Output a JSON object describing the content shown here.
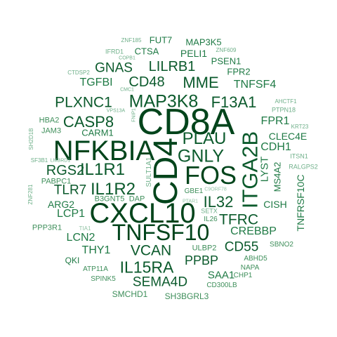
{
  "colors": {
    "background": "#ffffff",
    "darkest": "#00441b",
    "dark": "#0b5a2c",
    "mid": "#1f7a45",
    "medium": "#3f8f5b",
    "light": "#6fb08a",
    "lightest": "#93c4a6"
  },
  "words": [
    {
      "text": "CD8A",
      "tone": "darkest"
    },
    {
      "text": "CD4",
      "tone": "darkest"
    },
    {
      "text": "NFKBIA",
      "tone": "darkest"
    },
    {
      "text": "CXCL10",
      "tone": "darkest"
    },
    {
      "text": "FOS",
      "tone": "darkest"
    },
    {
      "text": "TNFSF10",
      "tone": "darkest"
    },
    {
      "text": "ITGA2B",
      "tone": "dark"
    },
    {
      "text": "MAP3K8",
      "tone": "dark"
    },
    {
      "text": "GNLY",
      "tone": "dark"
    },
    {
      "text": "PLAU",
      "tone": "dark"
    },
    {
      "text": "IL1R1",
      "tone": "dark"
    },
    {
      "text": "IL1R2",
      "tone": "dark"
    },
    {
      "text": "CASP8",
      "tone": "dark"
    },
    {
      "text": "F13A1",
      "tone": "dark"
    },
    {
      "text": "CD48",
      "tone": "dark"
    },
    {
      "text": "MME",
      "tone": "dark"
    },
    {
      "text": "IL15RA",
      "tone": "dark"
    },
    {
      "text": "VCAN",
      "tone": "dark"
    },
    {
      "text": "IL32",
      "tone": "dark"
    },
    {
      "text": "TFRC",
      "tone": "dark"
    },
    {
      "text": "PLXNC1",
      "tone": "dark"
    },
    {
      "text": "LILRB1",
      "tone": "dark"
    },
    {
      "text": "GNAS",
      "tone": "dark"
    },
    {
      "text": "RGS2",
      "tone": "dark"
    },
    {
      "text": "TLR7",
      "tone": "dark"
    },
    {
      "text": "SEMA4D",
      "tone": "dark"
    },
    {
      "text": "CD55",
      "tone": "dark"
    },
    {
      "text": "PPBP",
      "tone": "dark"
    },
    {
      "text": "TNFSF4",
      "tone": "mid"
    },
    {
      "text": "TGFBI",
      "tone": "mid"
    },
    {
      "text": "FPR1",
      "tone": "mid"
    },
    {
      "text": "CDH1",
      "tone": "mid"
    },
    {
      "text": "LYST",
      "tone": "mid"
    },
    {
      "text": "CREBBP",
      "tone": "mid"
    },
    {
      "text": "THY1",
      "tone": "mid"
    },
    {
      "text": "LCN2",
      "tone": "mid"
    },
    {
      "text": "LCP1",
      "tone": "mid"
    },
    {
      "text": "ARG2",
      "tone": "mid"
    },
    {
      "text": "CARM1",
      "tone": "mid"
    },
    {
      "text": "SAA1",
      "tone": "mid"
    },
    {
      "text": "CLEC4E",
      "tone": "mid"
    },
    {
      "text": "MS4A2",
      "tone": "mid"
    },
    {
      "text": "CISH",
      "tone": "mid"
    },
    {
      "text": "TNFRSF10C",
      "tone": "mid"
    },
    {
      "text": "PELI1",
      "tone": "mid"
    },
    {
      "text": "MAP3K5",
      "tone": "mid"
    },
    {
      "text": "PSEN1",
      "tone": "mid"
    },
    {
      "text": "FPR2",
      "tone": "mid"
    },
    {
      "text": "CTSA",
      "tone": "mid"
    },
    {
      "text": "FUT7",
      "tone": "mid"
    },
    {
      "text": "QKI",
      "tone": "mid"
    },
    {
      "text": "ABHD5",
      "tone": "medium"
    },
    {
      "text": "NAPA",
      "tone": "medium"
    },
    {
      "text": "CHP1",
      "tone": "medium"
    },
    {
      "text": "SBNO2",
      "tone": "medium"
    },
    {
      "text": "ULBP2",
      "tone": "medium"
    },
    {
      "text": "CD300LB",
      "tone": "medium"
    },
    {
      "text": "SH3BGRL3",
      "tone": "medium"
    },
    {
      "text": "SMCHD1",
      "tone": "medium"
    },
    {
      "text": "SPINK5",
      "tone": "medium"
    },
    {
      "text": "ATP11A",
      "tone": "medium"
    },
    {
      "text": "B3GNT5",
      "tone": "medium"
    },
    {
      "text": "DAP",
      "tone": "medium"
    },
    {
      "text": "PPP3R1",
      "tone": "medium"
    },
    {
      "text": "PABPC1",
      "tone": "medium"
    },
    {
      "text": "JAM3",
      "tone": "medium"
    },
    {
      "text": "HBA2",
      "tone": "medium"
    },
    {
      "text": "GBE1",
      "tone": "medium"
    },
    {
      "text": "IL26",
      "tone": "medium"
    },
    {
      "text": "SETX",
      "tone": "light"
    },
    {
      "text": "RALGPS2",
      "tone": "light"
    },
    {
      "text": "ITSN1",
      "tone": "light"
    },
    {
      "text": "KRT23",
      "tone": "light"
    },
    {
      "text": "PTPN18",
      "tone": "light"
    },
    {
      "text": "AHCTF1",
      "tone": "light"
    },
    {
      "text": "SF3B1",
      "tone": "light"
    },
    {
      "text": "LMBRD1",
      "tone": "light"
    },
    {
      "text": "ZNF281",
      "tone": "light"
    },
    {
      "text": "SH2D1B",
      "tone": "light"
    },
    {
      "text": "ZNF185",
      "tone": "light"
    },
    {
      "text": "IFRD1",
      "tone": "light"
    },
    {
      "text": "COPB1",
      "tone": "light"
    },
    {
      "text": "ZNF609",
      "tone": "light"
    },
    {
      "text": "CTDSP2",
      "tone": "light"
    },
    {
      "text": "CMC1",
      "tone": "light"
    },
    {
      "text": "VPS13A",
      "tone": "light"
    },
    {
      "text": "FNIP1",
      "tone": "light"
    },
    {
      "text": "SULT1A1",
      "tone": "light"
    },
    {
      "text": "C9ORF78",
      "tone": "lightest"
    },
    {
      "text": "PTAR1",
      "tone": "lightest"
    },
    {
      "text": "TIA1",
      "tone": "lightest"
    }
  ]
}
